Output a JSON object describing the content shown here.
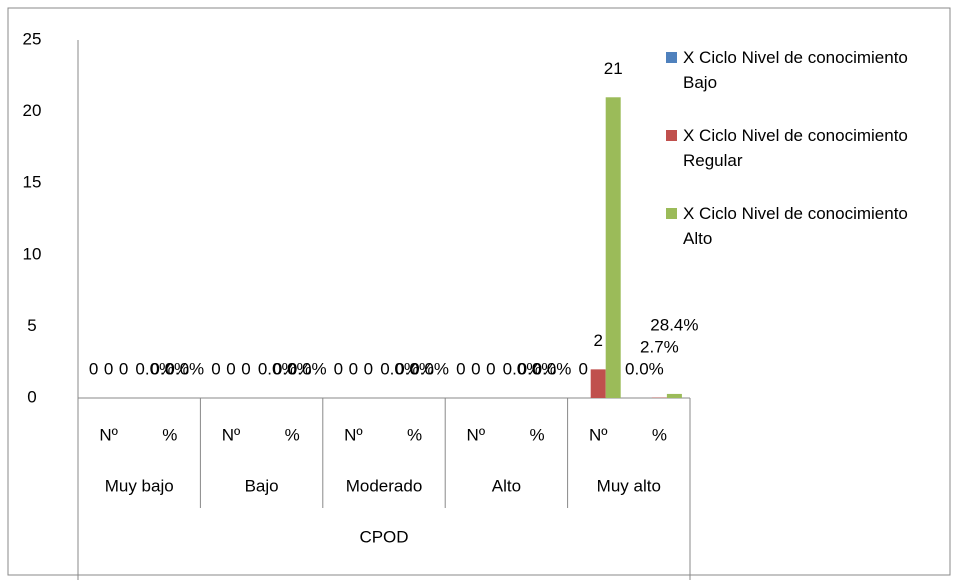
{
  "chart_data": {
    "type": "bar",
    "categories": [
      "Nº",
      "%",
      "Nº",
      "%",
      "Nº",
      "%",
      "Nº",
      "%",
      "Nº",
      "%"
    ],
    "groups": [
      "Muy bajo",
      "Bajo",
      "Moderado",
      "Alto",
      "Muy alto"
    ],
    "supergroup": "CPOD",
    "series": [
      {
        "name": "X Ciclo Nivel de conocimiento Bajo",
        "color": "#4f81bd",
        "values": [
          0,
          0,
          0,
          0,
          0,
          0,
          0,
          0,
          0,
          0
        ],
        "value_labels": [
          "0",
          "0.0%",
          "0",
          "0.0%",
          "0",
          "0.0%",
          "0",
          "0.0%",
          "0",
          "0.0%"
        ]
      },
      {
        "name": "X Ciclo Nivel de conocimiento Regular",
        "color": "#c0504d",
        "values": [
          0,
          0,
          0,
          0,
          0,
          0,
          0,
          0,
          2,
          0.027
        ],
        "value_labels": [
          "0",
          "0.0%",
          "0",
          "0.0%",
          "0",
          "0.0%",
          "0",
          "0.0%",
          "2",
          "2.7%"
        ]
      },
      {
        "name": "X Ciclo Nivel de conocimiento Alto",
        "color": "#9bbb59",
        "values": [
          0,
          0,
          0,
          0,
          0,
          0,
          0,
          0,
          21,
          0.284
        ],
        "value_labels": [
          "0",
          "0.0%",
          "0",
          "0.0%",
          "0",
          "0.0%",
          "0",
          "0.0%",
          "21",
          "28.4%"
        ]
      }
    ],
    "ylim": [
      0,
      25
    ],
    "yticks": [
      0,
      5,
      10,
      15,
      20,
      25
    ],
    "grid": false,
    "legend": "right"
  }
}
